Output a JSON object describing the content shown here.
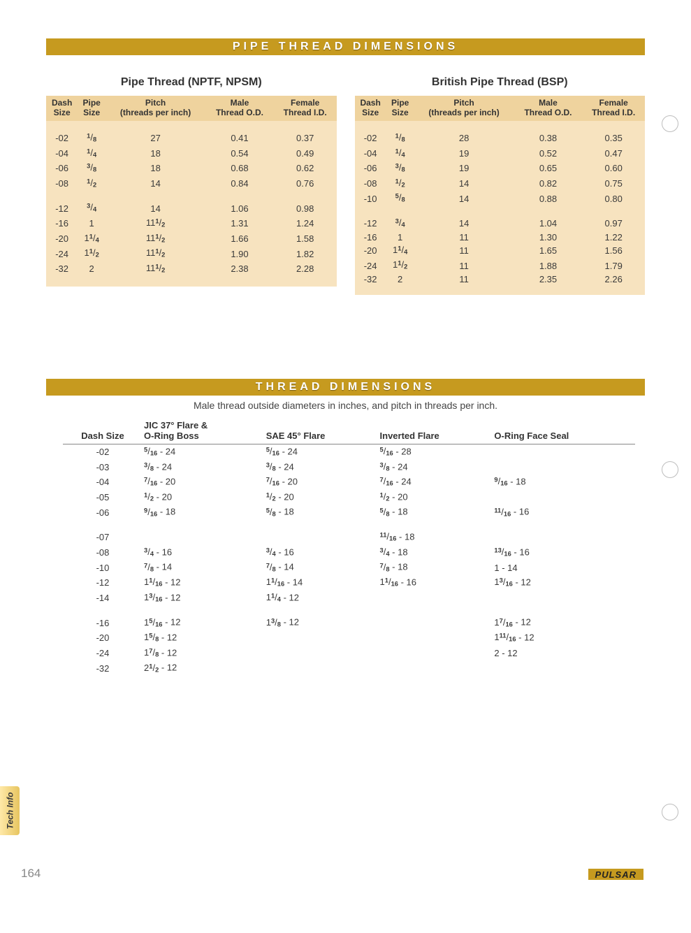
{
  "colors": {
    "banner": "#c69a1f",
    "tableHeader": "#efd39e",
    "tableBody": "#f7e3bf",
    "tabGradientA": "#ffe9a8",
    "tabGradientB": "#e7c560",
    "pageNum": "#888888"
  },
  "banner1": "PIPE  THREAD  DIMENSIONS",
  "banner2": "THREAD  DIMENSIONS",
  "subtitle": "Male thread outside diameters in inches, and pitch in threads per inch.",
  "sideTab": "Tech Info",
  "pageNumber": "164",
  "brand": "PULSAR",
  "pipeHeaders": [
    "Dash\nSize",
    "Pipe\nSize",
    "Pitch\n(threads per inch)",
    "Male\nThread O.D.",
    "Female\nThread I.D."
  ],
  "pipe1": {
    "title": "Pipe Thread (NPTF, NPSM)",
    "rows": [
      [
        "-02",
        "1/8",
        "27",
        "0.41",
        "0.37"
      ],
      [
        "-04",
        "1/4",
        "18",
        "0.54",
        "0.49"
      ],
      [
        "-06",
        "3/8",
        "18",
        "0.68",
        "0.62"
      ],
      [
        "-08",
        "1/2",
        "14",
        "0.84",
        "0.76"
      ],
      null,
      [
        "-12",
        "3/4",
        "14",
        "1.06",
        "0.98"
      ],
      [
        "-16",
        "1",
        "11 1/2",
        "1.31",
        "1.24"
      ],
      [
        "-20",
        "1 1/4",
        "11 1/2",
        "1.66",
        "1.58"
      ],
      [
        "-24",
        "1 1/2",
        "11 1/2",
        "1.90",
        "1.82"
      ],
      [
        "-32",
        "2",
        "11 1/2",
        "2.38",
        "2.28"
      ]
    ]
  },
  "pipe2": {
    "title": "British Pipe Thread (BSP)",
    "rows": [
      [
        "-02",
        "1/8",
        "28",
        "0.38",
        "0.35"
      ],
      [
        "-04",
        "1/4",
        "19",
        "0.52",
        "0.47"
      ],
      [
        "-06",
        "3/8",
        "19",
        "0.65",
        "0.60"
      ],
      [
        "-08",
        "1/2",
        "14",
        "0.82",
        "0.75"
      ],
      [
        "-10",
        "5/8",
        "14",
        "0.88",
        "0.80"
      ],
      null,
      [
        "-12",
        "3/4",
        "14",
        "1.04",
        "0.97"
      ],
      [
        "-16",
        "1",
        "11",
        "1.30",
        "1.22"
      ],
      [
        "-20",
        "1 1/4",
        "11",
        "1.65",
        "1.56"
      ],
      [
        "-24",
        "1 1/2",
        "11",
        "1.88",
        "1.79"
      ],
      [
        "-32",
        "2",
        "11",
        "2.35",
        "2.26"
      ]
    ]
  },
  "threadHeaders": [
    "Dash Size",
    "JIC 37° Flare &\nO-Ring Boss",
    "SAE 45° Flare",
    "Inverted Flare",
    "O-Ring Face Seal"
  ],
  "threadRows": [
    [
      "-02",
      "5/16 - 24",
      "5/16 - 24",
      "5/16 - 28",
      ""
    ],
    [
      "-03",
      "3/8 - 24",
      "3/8 - 24",
      "3/8 - 24",
      ""
    ],
    [
      "-04",
      "7/16 - 20",
      "7/16 - 20",
      "7/16 - 24",
      "9/16 - 18"
    ],
    [
      "-05",
      "1/2 - 20",
      "1/2 - 20",
      "1/2 - 20",
      ""
    ],
    [
      "-06",
      "9/16 - 18",
      "5/8 - 18",
      "5/8 - 18",
      "11/16 - 16"
    ],
    null,
    [
      "-07",
      "",
      "",
      "11/16 - 18",
      ""
    ],
    [
      "-08",
      "3/4 - 16",
      "3/4 - 16",
      "3/4 - 18",
      "13/16 - 16"
    ],
    [
      "-10",
      "7/8 - 14",
      "7/8 - 14",
      "7/8 - 18",
      "1 - 14"
    ],
    [
      "-12",
      "1 1/16 - 12",
      "1 1/16 - 14",
      "1 1/16 - 16",
      "1 3/16 - 12"
    ],
    [
      "-14",
      "1 3/16 - 12",
      "1 1/4 - 12",
      "",
      ""
    ],
    null,
    [
      "-16",
      "1 5/16 - 12",
      "1 3/8 - 12",
      "",
      "1 7/16 - 12"
    ],
    [
      "-20",
      "1 5/8 - 12",
      "",
      "",
      "1 11/16 - 12"
    ],
    [
      "-24",
      "1 7/8 - 12",
      "",
      "",
      "2 - 12"
    ],
    [
      "-32",
      "2 1/2 - 12",
      "",
      "",
      ""
    ]
  ],
  "holes": [
    110,
    605,
    1095
  ]
}
